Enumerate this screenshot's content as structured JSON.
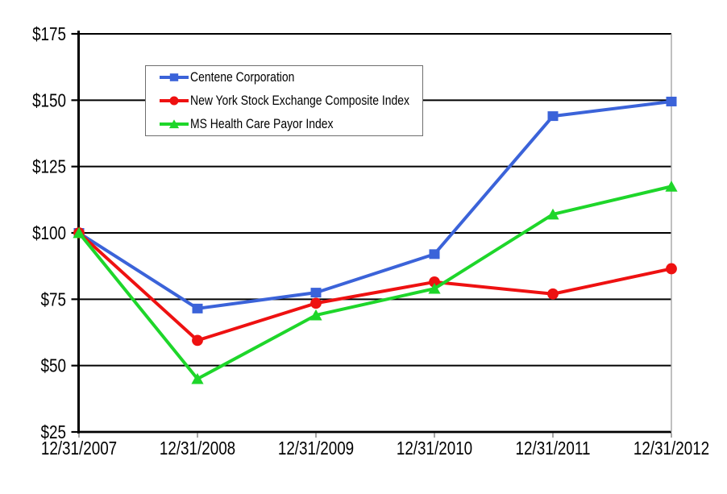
{
  "chart_data": {
    "type": "line",
    "title": "",
    "categories": [
      "12/31/2007",
      "12/31/2008",
      "12/31/2009",
      "12/31/2010",
      "12/31/2011",
      "12/31/2012"
    ],
    "series": [
      {
        "name": "Centene Corporation",
        "marker": "square",
        "color": "#3B63D9",
        "values": [
          100,
          71.5,
          77.5,
          92,
          144,
          149.5
        ]
      },
      {
        "name": "New York Stock Exchange Composite Index",
        "marker": "circle",
        "color": "#EE1111",
        "values": [
          100,
          59.5,
          73.5,
          81.5,
          77,
          86.5
        ]
      },
      {
        "name": "MS Health Care Payor Index",
        "marker": "triangle",
        "color": "#1ED62A",
        "values": [
          100,
          45,
          69,
          79,
          107,
          117.5
        ]
      }
    ],
    "y_axis": {
      "ticks": [
        25,
        50,
        75,
        100,
        125,
        150,
        175
      ],
      "tick_labels": [
        "$25",
        "$50",
        "$75",
        "$100",
        "$125",
        "$150",
        "$175"
      ],
      "ylim": [
        25,
        175
      ],
      "currency_prefix": "$"
    },
    "x_axis": {
      "tick_labels": [
        "12/31/2007",
        "12/31/2008",
        "12/31/2009",
        "12/31/2010",
        "12/31/2011",
        "12/31/2012"
      ]
    },
    "grid": {
      "horizontal": true,
      "vertical": false,
      "color": "#000000"
    },
    "legend": {
      "position": "top-left-inside",
      "border_color": "#6E6E6E",
      "background": "#FFFFFF"
    },
    "colors": {
      "axis": "#000000",
      "plot_right_border": "#A6A6A6",
      "x_tick": "#808080",
      "text": "#000000",
      "background": "#FFFFFF"
    }
  }
}
